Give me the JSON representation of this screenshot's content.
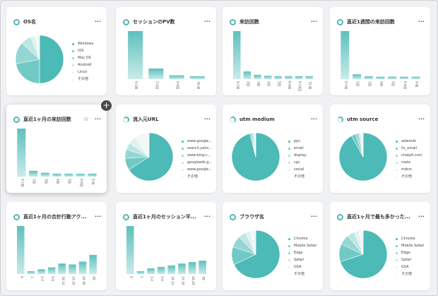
{
  "palette": {
    "accent": "#4fb8b5",
    "slices": [
      "#4cbab6",
      "#70c9c5",
      "#94d6d4",
      "#bde6e4",
      "#dff2f1",
      "#f2f7f7"
    ]
  },
  "cards": [
    {
      "title": "OS名",
      "menu": "···",
      "chart_type": "pie",
      "legend": [
        "Windows",
        "iOS",
        "Mac OS",
        "Android",
        "Linux",
        "その他"
      ],
      "values": [
        50,
        22,
        15,
        7,
        3,
        3
      ]
    },
    {
      "title": "セッションのPV数",
      "menu": "···",
      "chart_type": "bar",
      "categories": [
        "0-1回",
        "2-4回",
        "5-9回",
        "10-回"
      ],
      "values": [
        100,
        22,
        8,
        6
      ]
    },
    {
      "title": "来訪回数",
      "menu": "···",
      "chart_type": "bar",
      "categories": [
        "0-1回",
        "2回",
        "3回",
        "4回",
        "5回",
        "6-8回",
        "9-14回",
        "15-回"
      ],
      "values": [
        100,
        16,
        9,
        7,
        6,
        6,
        6,
        6
      ]
    },
    {
      "title": "直近1週間の来訪回数",
      "menu": "···",
      "chart_type": "bar",
      "categories": [
        "0-1回",
        "2回",
        "3回",
        "4回",
        "5回",
        "6-8回",
        "9-回"
      ],
      "values": [
        100,
        10,
        6,
        5,
        5,
        5,
        5
      ]
    },
    {
      "title": "直近1ヶ月の来訪回数",
      "menu": "···",
      "star": "☆",
      "chart_type": "bar",
      "categories": [
        "0-1回",
        "2回",
        "3回",
        "4回",
        "5回",
        "6-8回",
        "9-回"
      ],
      "values": [
        100,
        12,
        8,
        6,
        6,
        6,
        6
      ]
    },
    {
      "title": "流入元URL",
      "menu": "···",
      "chart_type": "pie",
      "legend": [
        "www.google...",
        "search.yaho...",
        "www.bing.c...",
        "googleads.g...",
        "www.google...",
        "その他"
      ],
      "values": [
        66,
        8,
        6,
        5,
        5,
        10
      ]
    },
    {
      "title": "utm medium",
      "menu": "···",
      "chart_type": "pie",
      "legend": [
        "ppc",
        "email",
        "display",
        "cpc",
        "social",
        "その他"
      ],
      "values": [
        96,
        1,
        1,
        1,
        0.5,
        0.5
      ]
    },
    {
      "title": "utm source",
      "menu": "···",
      "chart_type": "pie",
      "legend": [
        "adwords",
        "hs_email",
        "chatplt.com",
        "meta",
        "mdsrc",
        "その他"
      ],
      "values": [
        92,
        3,
        2,
        1,
        1,
        1
      ]
    },
    {
      "title": "直近1ヶ月の合計行動アク...",
      "menu": "···",
      "chart_type": "bar",
      "categories": [
        "0",
        "1",
        "2-4",
        "5-9",
        "10-14",
        "15-19",
        "20-39",
        "40-"
      ],
      "values": [
        100,
        6,
        10,
        14,
        22,
        20,
        26,
        40
      ]
    },
    {
      "title": "直近1ヶ月のセッション平...",
      "menu": "···",
      "chart_type": "bar",
      "categories": [
        "0",
        "1",
        "2-4",
        "5-9",
        "10-14",
        "15-19",
        "20-29",
        "30-"
      ],
      "values": [
        100,
        6,
        12,
        15,
        18,
        22,
        25,
        28
      ]
    },
    {
      "title": "ブラウザ名",
      "menu": "···",
      "chart_type": "pie",
      "legend": [
        "Chrome",
        "Mobile Safari",
        "Edge",
        "Safari",
        "GSA",
        "その他"
      ],
      "values": [
        68,
        12,
        8,
        5,
        3,
        4
      ]
    },
    {
      "title": "直近1ヶ月で最も多かった...",
      "menu": "···",
      "chart_type": "pie",
      "legend": [
        "Chrome",
        "Mobile Safari",
        "Edge",
        "Safari",
        "GSA",
        "その他"
      ],
      "values": [
        70,
        12,
        7,
        5,
        3,
        3
      ]
    }
  ]
}
